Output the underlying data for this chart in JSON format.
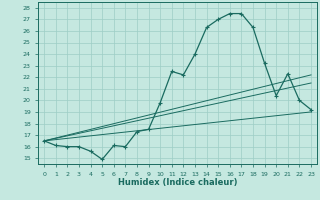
{
  "title": "",
  "xlabel": "Humidex (Indice chaleur)",
  "ylabel": "",
  "bg_color": "#c5e8e0",
  "grid_color": "#9ecec6",
  "line_color": "#1a6b60",
  "xlim": [
    -0.5,
    23.5
  ],
  "ylim": [
    14.5,
    28.5
  ],
  "xticks": [
    0,
    1,
    2,
    3,
    4,
    5,
    6,
    7,
    8,
    9,
    10,
    11,
    12,
    13,
    14,
    15,
    16,
    17,
    18,
    19,
    20,
    21,
    22,
    23
  ],
  "yticks": [
    15,
    16,
    17,
    18,
    19,
    20,
    21,
    22,
    23,
    24,
    25,
    26,
    27,
    28
  ],
  "curve1_x": [
    0,
    1,
    2,
    3,
    4,
    5,
    6,
    7,
    8,
    9,
    10,
    11,
    12,
    13,
    14,
    15,
    16,
    17,
    18,
    19,
    20,
    21,
    22,
    23
  ],
  "curve1_y": [
    16.5,
    16.1,
    16.0,
    16.0,
    15.6,
    14.9,
    16.1,
    16.0,
    17.3,
    17.5,
    19.8,
    22.5,
    22.2,
    24.0,
    26.3,
    27.0,
    27.5,
    27.5,
    26.3,
    23.2,
    20.4,
    22.3,
    20.0,
    19.2
  ],
  "line1_x": [
    0,
    23
  ],
  "line1_y": [
    16.5,
    19.0
  ],
  "line2_x": [
    0,
    23
  ],
  "line2_y": [
    16.5,
    22.2
  ],
  "line3_x": [
    0,
    23
  ],
  "line3_y": [
    16.5,
    21.5
  ],
  "xlabel_fontsize": 6.0,
  "tick_fontsize": 4.5
}
